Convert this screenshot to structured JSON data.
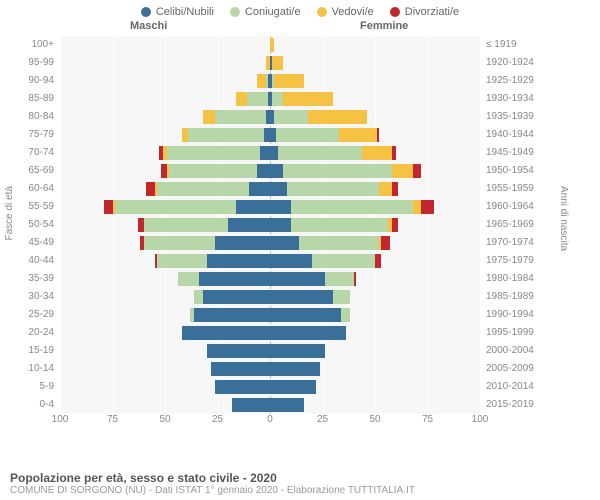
{
  "legend": [
    {
      "label": "Celibi/Nubili",
      "color": "#3a6f9a"
    },
    {
      "label": "Coniugati/e",
      "color": "#b7d7a8"
    },
    {
      "label": "Vedovi/e",
      "color": "#f6c244"
    },
    {
      "label": "Divorziati/e",
      "color": "#c1272d"
    }
  ],
  "gender": {
    "left": "Maschi",
    "right": "Femmine"
  },
  "axis": {
    "left_title": "Fasce di età",
    "right_title": "Anni di nascita",
    "xmax": 100,
    "xticks": [
      100,
      75,
      50,
      25,
      0,
      25,
      50,
      75,
      100
    ]
  },
  "plot": {
    "background": "#f7f7f7",
    "grid_color": "#ffffff",
    "center_dash_color": "#bbbbbb"
  },
  "footer": {
    "title": "Popolazione per età, sesso e stato civile - 2020",
    "sub": "COMUNE DI SORGONO (NU) - Dati ISTAT 1° gennaio 2020 - Elaborazione TUTTITALIA.IT"
  },
  "rows": [
    {
      "age": "100+",
      "birth": "≤ 1919",
      "m": [
        0,
        0,
        0,
        0
      ],
      "f": [
        0,
        0,
        2,
        0
      ]
    },
    {
      "age": "95-99",
      "birth": "1920-1924",
      "m": [
        0,
        0,
        2,
        0
      ],
      "f": [
        1,
        0,
        5,
        0
      ]
    },
    {
      "age": "90-94",
      "birth": "1925-1929",
      "m": [
        1,
        1,
        4,
        0
      ],
      "f": [
        1,
        1,
        14,
        0
      ]
    },
    {
      "age": "85-89",
      "birth": "1930-1934",
      "m": [
        1,
        10,
        5,
        0
      ],
      "f": [
        1,
        5,
        24,
        0
      ]
    },
    {
      "age": "80-84",
      "birth": "1935-1939",
      "m": [
        2,
        24,
        6,
        0
      ],
      "f": [
        2,
        16,
        28,
        0
      ]
    },
    {
      "age": "75-79",
      "birth": "1940-1944",
      "m": [
        3,
        36,
        3,
        0
      ],
      "f": [
        3,
        30,
        18,
        1
      ]
    },
    {
      "age": "70-74",
      "birth": "1945-1949",
      "m": [
        5,
        44,
        2,
        2
      ],
      "f": [
        4,
        40,
        14,
        2
      ]
    },
    {
      "age": "65-69",
      "birth": "1950-1954",
      "m": [
        6,
        42,
        1,
        3
      ],
      "f": [
        6,
        52,
        10,
        4
      ]
    },
    {
      "age": "60-64",
      "birth": "1955-1959",
      "m": [
        10,
        44,
        1,
        4
      ],
      "f": [
        8,
        44,
        6,
        3
      ]
    },
    {
      "age": "55-59",
      "birth": "1960-1964",
      "m": [
        16,
        58,
        1,
        4
      ],
      "f": [
        10,
        58,
        4,
        6
      ]
    },
    {
      "age": "50-54",
      "birth": "1965-1969",
      "m": [
        20,
        40,
        0,
        3
      ],
      "f": [
        10,
        46,
        2,
        3
      ]
    },
    {
      "age": "45-49",
      "birth": "1970-1974",
      "m": [
        26,
        34,
        0,
        2
      ],
      "f": [
        14,
        38,
        1,
        4
      ]
    },
    {
      "age": "40-44",
      "birth": "1975-1979",
      "m": [
        30,
        24,
        0,
        1
      ],
      "f": [
        20,
        30,
        0,
        3
      ]
    },
    {
      "age": "35-39",
      "birth": "1980-1984",
      "m": [
        34,
        10,
        0,
        0
      ],
      "f": [
        26,
        14,
        0,
        1
      ]
    },
    {
      "age": "30-34",
      "birth": "1985-1989",
      "m": [
        32,
        4,
        0,
        0
      ],
      "f": [
        30,
        8,
        0,
        0
      ]
    },
    {
      "age": "25-29",
      "birth": "1990-1994",
      "m": [
        36,
        2,
        0,
        0
      ],
      "f": [
        34,
        4,
        0,
        0
      ]
    },
    {
      "age": "20-24",
      "birth": "1995-1999",
      "m": [
        42,
        0,
        0,
        0
      ],
      "f": [
        36,
        0,
        0,
        0
      ]
    },
    {
      "age": "15-19",
      "birth": "2000-2004",
      "m": [
        30,
        0,
        0,
        0
      ],
      "f": [
        26,
        0,
        0,
        0
      ]
    },
    {
      "age": "10-14",
      "birth": "2005-2009",
      "m": [
        28,
        0,
        0,
        0
      ],
      "f": [
        24,
        0,
        0,
        0
      ]
    },
    {
      "age": "5-9",
      "birth": "2010-2014",
      "m": [
        26,
        0,
        0,
        0
      ],
      "f": [
        22,
        0,
        0,
        0
      ]
    },
    {
      "age": "0-4",
      "birth": "2015-2019",
      "m": [
        18,
        0,
        0,
        0
      ],
      "f": [
        16,
        0,
        0,
        0
      ]
    }
  ]
}
